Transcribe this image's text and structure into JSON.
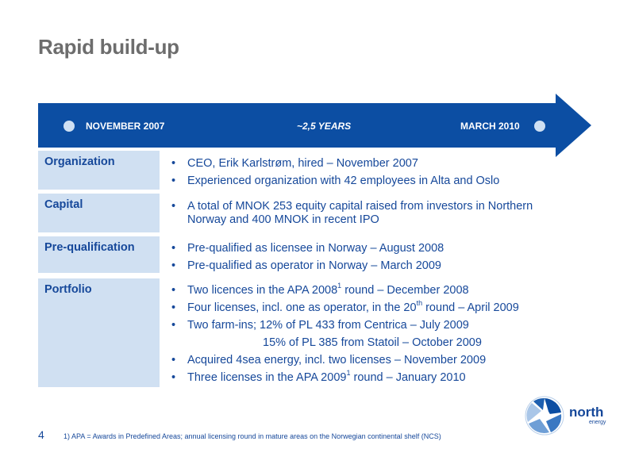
{
  "title": "Rapid build-up",
  "timeline": {
    "start": "NOVEMBER 2007",
    "middle": "~2,5 YEARS",
    "end": "MARCH 2010"
  },
  "rows": [
    {
      "label": "Organization",
      "bullets": [
        {
          "text": "CEO, Erik Karlstrøm, hired – November 2007"
        },
        {
          "text": "Experienced organization with 42 employees in Alta and Oslo"
        }
      ]
    },
    {
      "label": "Capital",
      "bullets": [
        {
          "text": "A total of MNOK 253 equity capital raised from investors in Northern Norway and 400 MNOK in recent IPO"
        }
      ]
    },
    {
      "label": "Pre-qualification",
      "bullets": [
        {
          "text": "Pre-qualified as licensee in Norway – August 2008"
        },
        {
          "text": "Pre-qualified as operator in Norway – March 2009"
        }
      ]
    },
    {
      "label": "Portfolio",
      "bullets": [
        {
          "pre": "Two licences in the APA 2008",
          "sup": "1",
          "post": " round – December 2008"
        },
        {
          "pre": "Four licenses, incl. one as operator, in the 20",
          "sup": "th",
          "post": " round – April 2009"
        },
        {
          "text": "Two farm-ins; 12% of PL 433 from Centrica – July 2009"
        },
        {
          "text": "15% of PL 385 from Statoil – October 2009"
        },
        {
          "text": "Acquired 4sea energy, incl. two licenses – November 2009"
        },
        {
          "pre": "Three licenses in the APA 2009",
          "sup": "1",
          "post": " round – January 2010"
        }
      ]
    }
  ],
  "page_number": "4",
  "footnote": "1) APA = Awards in Predefined Areas; annual licensing round in mature areas on the Norwegian continental shelf (NCS)",
  "logo": {
    "word": "north",
    "sub": "energy"
  },
  "bullet_char": "•",
  "colors": {
    "title": "#6d6d6d",
    "arrow": "#0c4ea3",
    "text": "#16489a",
    "label_bg": "#d0e0f2"
  }
}
